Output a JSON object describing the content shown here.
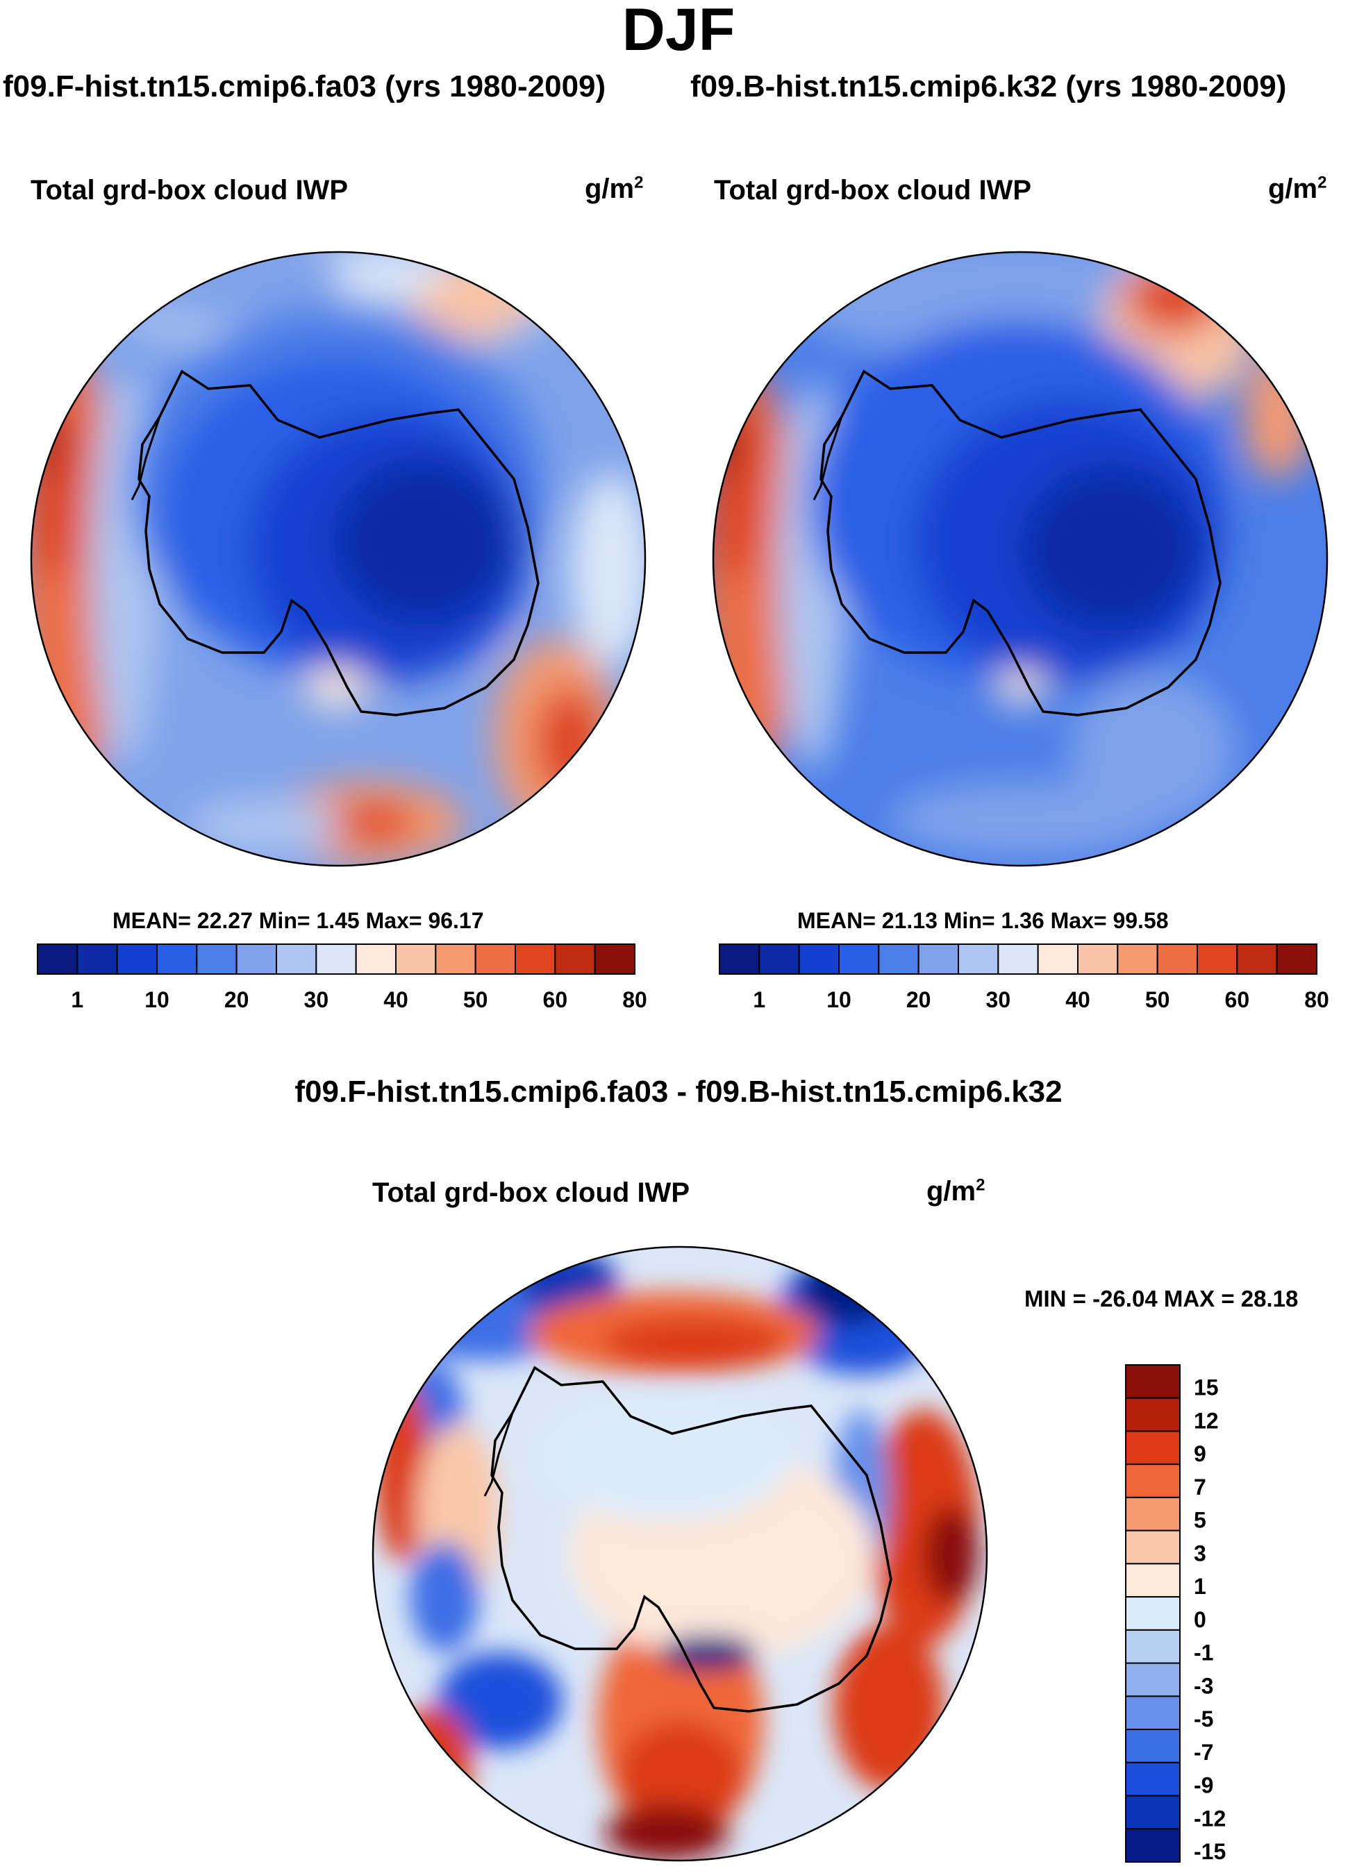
{
  "figure": {
    "season": "DJF",
    "case_left": "f09.F-hist.tn15.cmip6.fa03 (yrs 1980-2009)",
    "case_right": "f09.B-hist.tn15.cmip6.k32 (yrs 1980-2009)",
    "diff_header": "f09.F-hist.tn15.cmip6.fa03 - f09.B-hist.tn15.cmip6.k32"
  },
  "chart_data": [
    {
      "type": "heatmap",
      "projection": "south polar stereographic",
      "title": "Total grd-box cloud IWP",
      "units_base": "g/m",
      "units_exp": "2",
      "stats": "MEAN=  22.27  Min=   1.45  Max=  96.17",
      "mean": 22.27,
      "min": 1.45,
      "max": 96.17,
      "colorbar_ticks": [
        "1",
        "10",
        "20",
        "30",
        "40",
        "50",
        "60",
        "80"
      ],
      "colors": [
        "#0a1a80",
        "#0c2aa6",
        "#1440d0",
        "#2a5ee6",
        "#4c7ee8",
        "#7fa2ea",
        "#adc5f0",
        "#dbe7f8",
        "#fce8dc",
        "#f8c3a6",
        "#f39a72",
        "#ec6e44",
        "#de4520",
        "#c02a10",
        "#8a1008"
      ]
    },
    {
      "type": "heatmap",
      "projection": "south polar stereographic",
      "title": "Total grd-box cloud IWP",
      "units_base": "g/m",
      "units_exp": "2",
      "stats": "MEAN=  21.13  Min=   1.36  Max=  99.58",
      "mean": 21.13,
      "min": 1.36,
      "max": 99.58,
      "colorbar_ticks": [
        "1",
        "10",
        "20",
        "30",
        "40",
        "50",
        "60",
        "80"
      ],
      "colors": [
        "#0a1a80",
        "#0c2aa6",
        "#1440d0",
        "#2a5ee6",
        "#4c7ee8",
        "#7fa2ea",
        "#adc5f0",
        "#dbe7f8",
        "#fce8dc",
        "#f8c3a6",
        "#f39a72",
        "#ec6e44",
        "#de4520",
        "#c02a10",
        "#8a1008"
      ]
    },
    {
      "type": "heatmap",
      "projection": "south polar stereographic",
      "title": "Total grd-box cloud IWP",
      "units_base": "g/m",
      "units_exp": "2",
      "minmax": "MIN = -26.04 MAX =  28.18",
      "min": -26.04,
      "max": 28.18,
      "colorbar_ticks": [
        "15",
        "12",
        "9",
        "7",
        "5",
        "3",
        "1",
        "0",
        "-1",
        "-3",
        "-5",
        "-7",
        "-9",
        "-12",
        "-15"
      ],
      "colors": [
        "#8a1008",
        "#b5200c",
        "#dc3a14",
        "#ef6638",
        "#f49a72",
        "#f9c7aa",
        "#fde8da",
        "#dcebfa",
        "#b8cff2",
        "#8fb0ec",
        "#6690ea",
        "#3c6ee6",
        "#1c4fdc",
        "#0c35b6",
        "#061c86"
      ]
    }
  ]
}
